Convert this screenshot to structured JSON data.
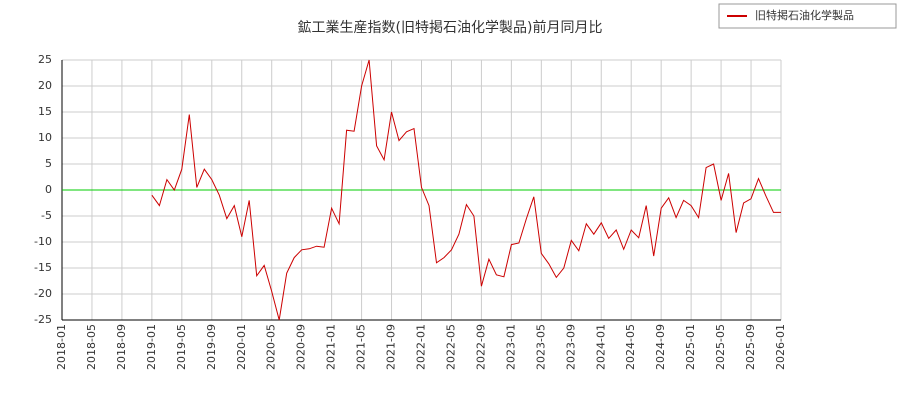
{
  "chart_data": {
    "type": "line",
    "title": "鉱工業生産指数(旧特掲石油化学製品)前月同月比",
    "x": [
      "2019-01",
      "2019-02",
      "2019-03",
      "2019-04",
      "2019-05",
      "2019-06",
      "2019-07",
      "2019-08",
      "2019-09",
      "2019-10",
      "2019-11",
      "2019-12",
      "2020-01",
      "2020-02",
      "2020-03",
      "2020-04",
      "2020-05",
      "2020-06",
      "2020-07",
      "2020-08",
      "2020-09",
      "2020-10",
      "2020-11",
      "2020-12",
      "2021-01",
      "2021-02",
      "2021-03",
      "2021-04",
      "2021-05",
      "2021-06",
      "2021-07",
      "2021-08",
      "2021-09",
      "2021-10",
      "2021-11",
      "2021-12",
      "2022-01",
      "2022-02",
      "2022-03",
      "2022-04",
      "2022-05",
      "2022-06",
      "2022-07",
      "2022-08",
      "2022-09",
      "2022-10",
      "2022-11",
      "2022-12",
      "2023-01",
      "2023-02",
      "2023-03",
      "2023-04",
      "2023-05",
      "2023-06",
      "2023-07",
      "2023-08",
      "2023-09",
      "2023-10",
      "2023-11",
      "2023-12",
      "2024-01",
      "2024-02",
      "2024-03",
      "2024-04",
      "2024-05",
      "2024-06",
      "2024-07",
      "2024-08",
      "2024-09",
      "2024-10",
      "2024-11",
      "2024-12",
      "2025-01",
      "2025-02",
      "2025-03",
      "2025-04",
      "2025-05",
      "2025-06",
      "2025-07",
      "2025-08",
      "2025-09",
      "2025-10",
      "2025-11",
      "2025-12",
      "2026-01"
    ],
    "series": [
      {
        "name": "旧特掲石油化学製品",
        "color": "#cc0000",
        "values": [
          -1,
          -3,
          2,
          0,
          4,
          14.5,
          0.5,
          4,
          2,
          -1,
          -5.5,
          -3,
          -9,
          -2,
          -16.5,
          -14.5,
          -19.5,
          -25,
          -16,
          -13,
          -11.5,
          -11.3,
          -10.8,
          -11,
          -3.5,
          -6.5,
          11.5,
          11.3,
          20,
          25,
          8.5,
          5.8,
          15,
          9.5,
          11.2,
          11.8,
          0.5,
          -3,
          -14,
          -13,
          -11.5,
          -8.5,
          -2.8,
          -5,
          -18.5,
          -13.3,
          -16.3,
          -16.7,
          -10.5,
          -10.2,
          -5.5,
          -1.3,
          -12.2,
          -14.2,
          -16.8,
          -15,
          -9.7,
          -11.7,
          -6.5,
          -8.5,
          -6.3,
          -9.3,
          -7.7,
          -11.4,
          -7.7,
          -9.2,
          -3,
          -12.7,
          -3.5,
          -1.5,
          -5.3,
          -2,
          -3,
          -5.3,
          4.3,
          5,
          -2,
          3.2,
          -8.2,
          -2.5,
          -1.7,
          2.2,
          -1.2,
          -4.3,
          -4.3
        ]
      }
    ],
    "xlim": [
      "2018-01",
      "2026-01"
    ],
    "xticks": [
      "2018-01",
      "2018-05",
      "2018-09",
      "2019-01",
      "2019-05",
      "2019-09",
      "2020-01",
      "2020-05",
      "2020-09",
      "2021-01",
      "2021-05",
      "2021-09",
      "2022-01",
      "2022-05",
      "2022-09",
      "2023-01",
      "2023-05",
      "2023-09",
      "2024-01",
      "2024-05",
      "2024-09",
      "2025-01",
      "2025-05",
      "2025-09",
      "2026-01"
    ],
    "ylim": [
      -25,
      25
    ],
    "yticks": [
      25,
      20,
      15,
      10,
      5,
      0,
      -5,
      -10,
      -15,
      -20,
      -25
    ],
    "grid": true,
    "zero_line_color": "#00cc00",
    "legend": "top-right"
  }
}
